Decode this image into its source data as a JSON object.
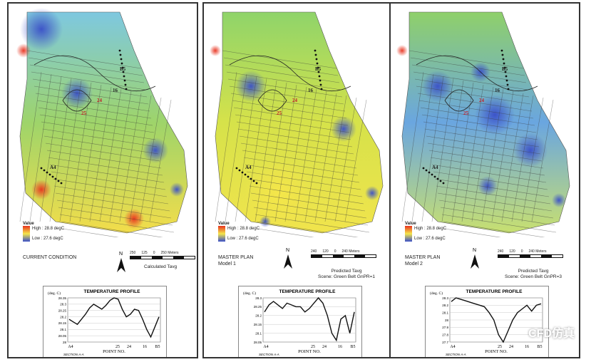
{
  "panels": [
    {
      "legend_title": "Value",
      "legend_high": "High : 28.8 degC",
      "legend_low": "Low : 27.6 degC",
      "caption_line1": "CURRENT CONDITION",
      "caption_line2": "",
      "scale_labels": [
        "250",
        "125",
        "0",
        "250 Meters"
      ],
      "north_label": "N",
      "scene_line1": "Calculated Tavg",
      "scene_line2": "",
      "map_labels": [
        "B5",
        "16",
        "24",
        "25",
        "A4"
      ],
      "profile": {
        "title": "TEMPERATURE PROFILE",
        "unit": "(deg. C)",
        "y_ticks": [
          "28.35",
          "28.3",
          "28.25",
          "28.2",
          "28.15",
          "28.1",
          "28.05",
          "28"
        ],
        "x_ticks": [
          "A4",
          "25",
          "24",
          "16",
          "B5"
        ],
        "xlabel": "POINT NO.",
        "section": "SECTION A-A",
        "values": [
          28.18,
          28.16,
          28.14,
          28.18,
          28.22,
          28.27,
          28.3,
          28.28,
          28.26,
          28.29,
          28.33,
          28.35,
          28.34,
          28.26,
          28.2,
          28.22,
          28.26,
          28.25,
          28.18,
          28.1,
          28.04,
          28.12,
          28.2
        ]
      }
    },
    {
      "legend_title": "Value",
      "legend_high": "High : 28.8 degC",
      "legend_low": "Low : 27.6 degC",
      "caption_line1": "MASTER PLAN",
      "caption_line2": "Model 1",
      "scale_labels": [
        "240",
        "120",
        "0",
        "240 Meters"
      ],
      "north_label": "N",
      "scene_line1": "Predicted Tavg",
      "scene_line2": "Scene: Green Belt GnPR=1",
      "map_labels": [
        "B5",
        "16",
        "24",
        "25",
        "A4"
      ],
      "profile": {
        "title": "TEMPERATURE PROFILE",
        "unit": "(deg. C)",
        "y_ticks": [
          "28.3",
          "28.25",
          "28.2",
          "28.15",
          "28.1",
          "28.05"
        ],
        "x_ticks": [
          "A4",
          "25",
          "24",
          "16",
          "B5"
        ],
        "xlabel": "POINT NO.",
        "section": "SECTION A-A",
        "values": [
          28.22,
          28.26,
          28.28,
          28.26,
          28.24,
          28.27,
          28.26,
          28.25,
          28.25,
          28.22,
          28.24,
          28.27,
          28.3,
          28.27,
          28.2,
          28.1,
          28.06,
          28.18,
          28.2,
          28.1,
          28.22
        ]
      }
    },
    {
      "legend_title": "Value",
      "legend_high": "High : 28.8 degC",
      "legend_low": "Low : 27.6 degC",
      "caption_line1": "MASTER PLAN",
      "caption_line2": "Model 2",
      "scale_labels": [
        "240",
        "120",
        "0",
        "240 Meters"
      ],
      "north_label": "N",
      "scene_line1": "Predicted Tavg",
      "scene_line2": "Scene: Green Belt GnPR=3",
      "map_labels": [
        "B5",
        "16",
        "24",
        "25",
        "A4"
      ],
      "profile": {
        "title": "TEMPERATURE PROFILE",
        "unit": "(deg. C)",
        "y_ticks": [
          "28.3",
          "28.2",
          "28.1",
          "28",
          "27.9",
          "27.8",
          "27.7"
        ],
        "x_ticks": [
          "A4",
          "25",
          "24",
          "16",
          "B5"
        ],
        "xlabel": "POINT NO.",
        "section": "SECTION A-A",
        "values": [
          28.25,
          28.3,
          28.28,
          28.26,
          28.24,
          28.22,
          28.2,
          28.18,
          28.1,
          28.0,
          27.8,
          27.7,
          27.85,
          28.0,
          28.1,
          28.15,
          28.2,
          28.12,
          28.2,
          28.22
        ]
      }
    }
  ],
  "watermark": "CFD仿真",
  "colors": {
    "high": "#e8321e",
    "mid": "#f5e64a",
    "green": "#8fd36b",
    "low": "#3a4fc8"
  }
}
